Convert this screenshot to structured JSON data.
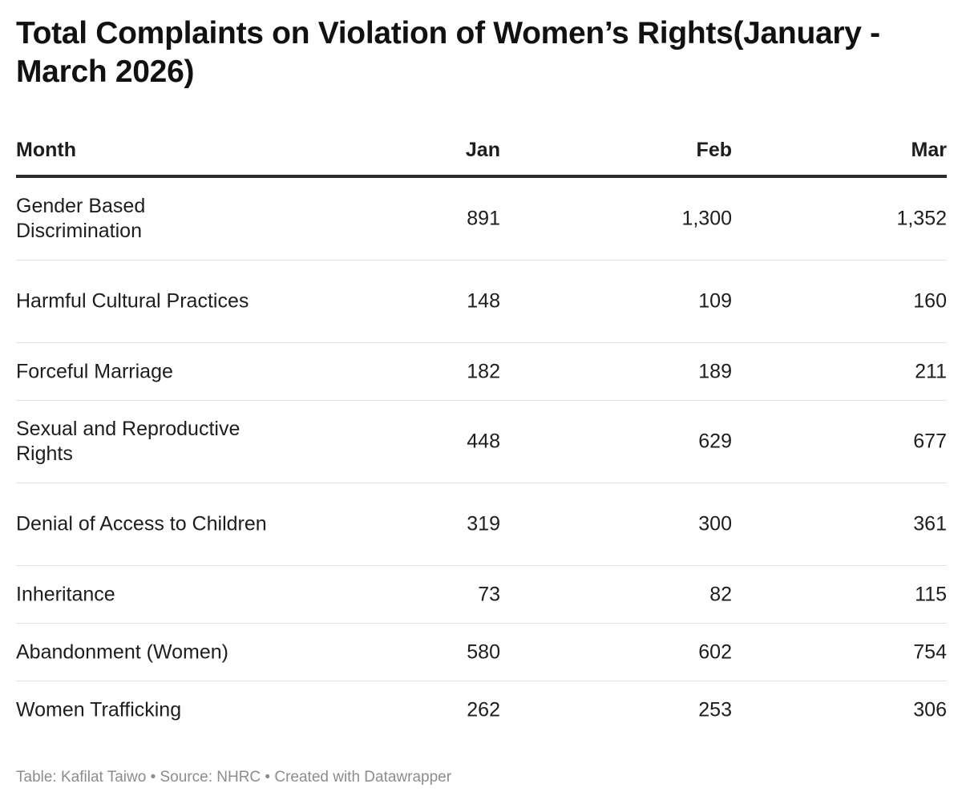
{
  "title": "Total Complaints on Violation of Women’s Rights(January - March 2026)",
  "footer": "Table: Kafilat Taiwo • Source: NHRC • Created with Datawrapper",
  "chart_data": {
    "type": "table",
    "title": "Total Complaints on Violation of Women’s Rights(January - March 2026)",
    "columns": [
      "Month",
      "Jan",
      "Feb",
      "Mar"
    ],
    "rows": [
      {
        "label": "Gender Based Discrimination",
        "values": [
          "891",
          "1,300",
          "1,352"
        ]
      },
      {
        "label": "Harmful Cultural Practices",
        "values": [
          "148",
          "109",
          "160"
        ]
      },
      {
        "label": "Forceful Marriage",
        "values": [
          "182",
          "189",
          "211"
        ]
      },
      {
        "label": "Sexual and Reproductive Rights",
        "values": [
          "448",
          "629",
          "677"
        ]
      },
      {
        "label": "Denial of Access to Children",
        "values": [
          "319",
          "300",
          "361"
        ]
      },
      {
        "label": "Inheritance",
        "values": [
          "73",
          "82",
          "115"
        ]
      },
      {
        "label": "Abandonment (Women)",
        "values": [
          "580",
          "602",
          "754"
        ]
      },
      {
        "label": "Women Trafficking",
        "values": [
          "262",
          "253",
          "306"
        ]
      }
    ]
  }
}
